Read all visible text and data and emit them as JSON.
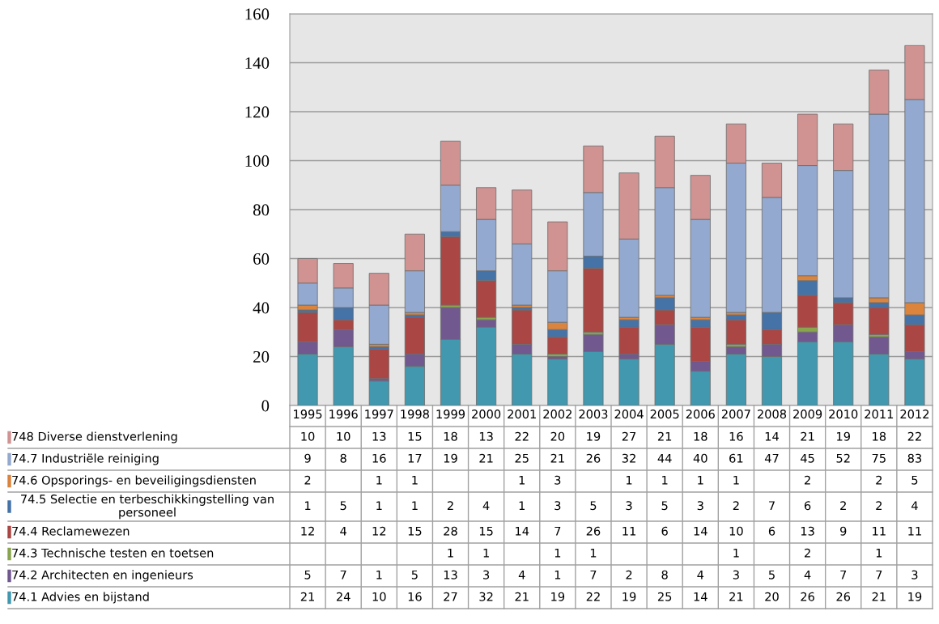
{
  "chart_data": {
    "type": "bar",
    "stacked": true,
    "data_labels": true,
    "grid": "y",
    "legend": "bottom left",
    "categories": [
      "1995",
      "1996",
      "1997",
      "1998",
      "1999",
      "2000",
      "2001",
      "2002",
      "2003",
      "2004",
      "2005",
      "2006",
      "2007",
      "2008",
      "2009",
      "2010",
      "2011",
      "2012"
    ],
    "ylim": [
      0,
      160
    ],
    "yticks": [
      0,
      20,
      40,
      60,
      80,
      100,
      120,
      140,
      160
    ],
    "series": [
      {
        "name": "74.1 Advies en bijstand",
        "color": "#4198af",
        "values": [
          21,
          24,
          10,
          16,
          27,
          32,
          21,
          19,
          22,
          19,
          25,
          14,
          21,
          20,
          26,
          26,
          21,
          19
        ]
      },
      {
        "name": "74.2 Architecten en ingenieurs",
        "color": "#71588f",
        "values": [
          5,
          7,
          1,
          5,
          13,
          3,
          4,
          1,
          7,
          2,
          8,
          4,
          3,
          5,
          4,
          7,
          7,
          3
        ]
      },
      {
        "name": "74.3 Technische testen en toetsen",
        "color": "#89a54e",
        "values": [
          null,
          null,
          null,
          null,
          1,
          1,
          null,
          1,
          1,
          null,
          null,
          null,
          1,
          null,
          2,
          null,
          1,
          null
        ]
      },
      {
        "name": "74.4 Reclamewezen",
        "color": "#aa4643",
        "values": [
          12,
          4,
          12,
          15,
          28,
          15,
          14,
          7,
          26,
          11,
          6,
          14,
          10,
          6,
          13,
          9,
          11,
          11
        ]
      },
      {
        "name": "74.5 Selectie en terbeschikkingstelling van personeel",
        "color": "#4572a7",
        "values": [
          1,
          5,
          1,
          1,
          2,
          4,
          1,
          3,
          5,
          3,
          5,
          3,
          2,
          7,
          6,
          2,
          2,
          4
        ]
      },
      {
        "name": "74.6 Opsporings- en beveiligingsdiensten",
        "color": "#db843d",
        "values": [
          2,
          null,
          1,
          1,
          null,
          null,
          1,
          3,
          null,
          1,
          1,
          1,
          1,
          null,
          2,
          null,
          2,
          5
        ]
      },
      {
        "name": "74.7 Industriële reiniging",
        "color": "#93a9cf",
        "values": [
          9,
          8,
          16,
          17,
          19,
          21,
          25,
          21,
          26,
          32,
          44,
          40,
          61,
          47,
          45,
          52,
          75,
          83
        ]
      },
      {
        "name": "748 Diverse dienstverlening",
        "color": "#d09392",
        "values": [
          10,
          10,
          13,
          15,
          18,
          13,
          22,
          20,
          19,
          27,
          21,
          18,
          16,
          14,
          21,
          19,
          18,
          22
        ]
      }
    ]
  }
}
